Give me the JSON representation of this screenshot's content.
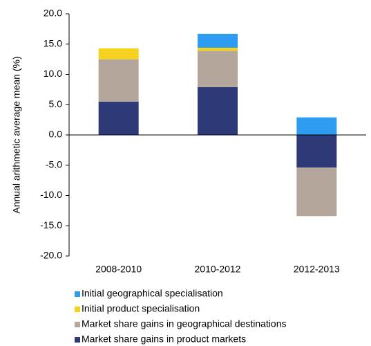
{
  "chart_data": {
    "type": "stacked_bar",
    "y_label": "Annual arithmetic average mean (%)",
    "categories": [
      "2008-2010",
      "2010-2012",
      "2012-2013"
    ],
    "series": [
      {
        "name": "Initial geographical specialisation",
        "color": "#2e9cf0",
        "values": [
          0,
          2.3,
          2.9
        ]
      },
      {
        "name": "Initial product specialisation",
        "color": "#f5d21f",
        "values": [
          1.8,
          0.5,
          0
        ]
      },
      {
        "name": "Market share gains in geographical destinations",
        "color": "#b5a69c",
        "values": [
          7.0,
          6.0,
          -8.0
        ]
      },
      {
        "name": "Market share gains in product markets",
        "color": "#2e3a78",
        "values": [
          5.5,
          7.9,
          -5.4
        ]
      }
    ],
    "ylim": [
      -20,
      20
    ],
    "yticks": [
      {
        "value": -20,
        "label": "-20.0"
      },
      {
        "value": -15,
        "label": "-15.0"
      },
      {
        "value": -10,
        "label": "-10.0"
      },
      {
        "value": -5,
        "label": "-5.0"
      },
      {
        "value": 0,
        "label": "0.0"
      },
      {
        "value": 5,
        "label": "5.0"
      },
      {
        "value": 10,
        "label": "10.0"
      },
      {
        "value": 15,
        "label": "15.0"
      },
      {
        "value": 20,
        "label": "20.0"
      }
    ]
  }
}
